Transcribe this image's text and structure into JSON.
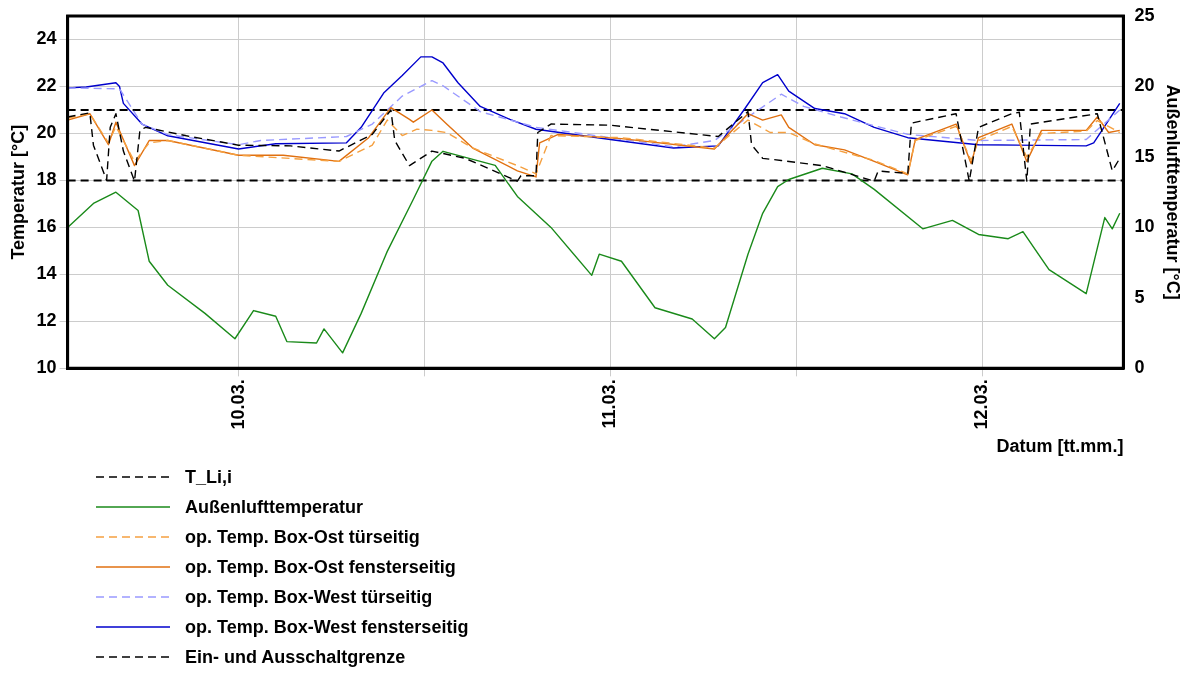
{
  "chart_data": {
    "type": "line",
    "xlabel": "Datum [tt.mm.]",
    "ylabel": "Temperatur [°C]",
    "y2label": "Außenlufttemperatur [°C]",
    "xlim": [
      "--03-09T12:58",
      "--03-12T09:07"
    ],
    "xticks": [
      {
        "value": "--03-10",
        "label": "10.03."
      },
      {
        "value": "--03-10T12:00",
        "label": null
      },
      {
        "value": "--03-11",
        "label": "11.03."
      },
      {
        "value": "--03-11T12:00",
        "label": null
      },
      {
        "value": "--03-12",
        "label": "12.03."
      }
    ],
    "ylim": [
      10,
      25
    ],
    "yticks": [
      10,
      12,
      14,
      16,
      18,
      20,
      22,
      24
    ],
    "y2lim": [
      0,
      25
    ],
    "y2ticks": [
      0,
      5,
      10,
      15,
      20,
      25
    ],
    "grid": true,
    "legend": "bottom",
    "marker": "none",
    "series": [
      {
        "name": "T_Li,i",
        "color": "#000000",
        "line_style": "dashed",
        "x": [
          "--03-09T12:58",
          "--03-09T14:24",
          "--03-09T14:38",
          "--03-09T15:29",
          "--03-09T15:43",
          "--03-09T16:05",
          "--03-09T16:34",
          "--03-09T17:17",
          "--03-09T17:38",
          "--03-09T18:00",
          "--03-09T20:38",
          "--03-10T00:00",
          "--03-10T03:22",
          "--03-10T06:29",
          "--03-10T08:38",
          "--03-10T09:50",
          "--03-10T10:05",
          "--03-10T11:02",
          "--03-10T12:29",
          "--03-10T14:38",
          "--03-10T18:00",
          "--03-10T18:14",
          "--03-10T19:12",
          "--03-10T19:19",
          "--03-10T20:10",
          "--03-11T00:00",
          "--03-11T06:58",
          "--03-11T08:53",
          "--03-11T09:07",
          "--03-11T09:50",
          "--03-11T11:02",
          "--03-11T13:41",
          "--03-11T17:02",
          "--03-11T17:17",
          "--03-11T19:12",
          "--03-11T19:26",
          "--03-11T22:19",
          "--03-11T23:10",
          "--03-11T23:46",
          "--03-12T01:55",
          "--03-12T02:24",
          "--03-12T02:53",
          "--03-12T03:07",
          "--03-12T07:26",
          "--03-12T08:24",
          "--03-12T08:53"
        ],
        "values": [
          20.7,
          20.88,
          19.5,
          18.0,
          20.26,
          20.84,
          19.25,
          17.97,
          20.13,
          20.26,
          19.9,
          19.5,
          19.47,
          19.25,
          19.96,
          21.0,
          19.7,
          18.63,
          19.25,
          18.94,
          17.97,
          18.2,
          18.2,
          20.04,
          20.4,
          20.35,
          19.87,
          20.93,
          19.52,
          18.94,
          18.85,
          18.63,
          17.97,
          18.4,
          18.3,
          20.44,
          20.84,
          17.97,
          20.26,
          20.84,
          20.9,
          17.97,
          20.4,
          20.84,
          18.41,
          18.94
        ]
      },
      {
        "name": "Außenlufttemperatur",
        "color": "#1a8a1a",
        "line_style": "solid",
        "axis": "y2",
        "x": [
          "--03-09T12:58",
          "--03-09T14:38",
          "--03-09T16:05",
          "--03-09T17:31",
          "--03-09T18:14",
          "--03-09T19:26",
          "--03-09T21:50",
          "--03-09T23:46",
          "--03-10T00:58",
          "--03-10T02:24",
          "--03-10T03:07",
          "--03-10T05:02",
          "--03-10T05:31",
          "--03-10T06:43",
          "--03-10T07:55",
          "--03-10T09:36",
          "--03-10T11:17",
          "--03-10T12:29",
          "--03-10T13:12",
          "--03-10T16:34",
          "--03-10T18:00",
          "--03-10T20:10",
          "--03-10T22:48",
          "--03-10T23:17",
          "--03-11T00:43",
          "--03-11T02:53",
          "--03-11T05:17",
          "--03-11T06:43",
          "--03-11T07:26",
          "--03-11T08:53",
          "--03-11T09:50",
          "--03-11T10:48",
          "--03-11T11:31",
          "--03-11T13:41",
          "--03-11T15:36",
          "--03-11T17:02",
          "--03-11T20:10",
          "--03-11T22:05",
          "--03-11T23:46",
          "--03-12T01:41",
          "--03-12T02:38",
          "--03-12T04:19",
          "--03-12T06:43",
          "--03-12T07:55",
          "--03-12T08:24",
          "--03-12T08:53"
        ],
        "values": [
          10.0,
          11.7,
          12.5,
          11.2,
          7.6,
          5.9,
          3.9,
          2.1,
          4.1,
          3.7,
          1.9,
          1.8,
          2.8,
          1.1,
          3.9,
          8.3,
          12.0,
          14.7,
          15.4,
          14.4,
          12.2,
          10.0,
          6.6,
          8.1,
          7.6,
          4.3,
          3.5,
          2.1,
          2.9,
          8.1,
          11.0,
          12.9,
          13.4,
          14.2,
          13.8,
          12.7,
          9.9,
          10.5,
          9.5,
          9.2,
          9.7,
          7.0,
          5.3,
          10.7,
          9.9,
          11.0
        ]
      },
      {
        "name": "op. Temp. Box-Ost türseitig",
        "color": "#f5a040",
        "line_style": "dashed",
        "x": [
          "--03-09T12:58",
          "--03-09T14:24",
          "--03-09T15:36",
          "--03-09T16:05",
          "--03-09T17:17",
          "--03-09T18:14",
          "--03-09T19:26",
          "--03-10T00:00",
          "--03-10T06:29",
          "--03-10T08:38",
          "--03-10T09:36",
          "--03-10T10:34",
          "--03-10T11:31",
          "--03-10T12:29",
          "--03-10T13:26",
          "--03-10T15:07",
          "--03-10T18:00",
          "--03-10T19:12",
          "--03-10T20:10",
          "--03-11T00:43",
          "--03-11T06:43",
          "--03-11T08:53",
          "--03-11T10:19",
          "--03-11T11:31",
          "--03-11T13:12",
          "--03-11T17:02",
          "--03-11T19:12",
          "--03-11T19:41",
          "--03-11T22:19",
          "--03-11T23:17",
          "--03-11T23:46",
          "--03-12T01:55",
          "--03-12T02:53",
          "--03-12T03:50",
          "--03-12T06:43",
          "--03-12T07:26",
          "--03-12T08:53"
        ],
        "values": [
          20.66,
          20.84,
          19.6,
          20.3,
          18.8,
          19.6,
          19.7,
          19.07,
          18.81,
          19.5,
          20.57,
          19.91,
          20.18,
          20.13,
          20.04,
          19.38,
          18.63,
          18.28,
          19.91,
          19.82,
          19.38,
          20.57,
          20.04,
          20.04,
          19.55,
          18.85,
          18.28,
          19.7,
          20.3,
          18.85,
          19.7,
          20.3,
          19.0,
          20.0,
          20.1,
          20.55,
          20.04
        ]
      },
      {
        "name": "op. Temp. Box-Ost fensterseitig",
        "color": "#e07010",
        "line_style": "solid",
        "x": [
          "--03-09T12:58",
          "--03-09T14:24",
          "--03-09T15:36",
          "--03-09T16:05",
          "--03-09T17:17",
          "--03-09T18:14",
          "--03-09T19:26",
          "--03-10T00:00",
          "--03-10T02:53",
          "--03-10T06:29",
          "--03-10T08:24",
          "--03-10T09:50",
          "--03-10T11:02",
          "--03-10T11:17",
          "--03-10T12:29",
          "--03-10T13:26",
          "--03-10T15:07",
          "--03-10T18:00",
          "--03-10T19:12",
          "--03-10T19:26",
          "--03-10T20:38",
          "--03-11T00:43",
          "--03-11T06:43",
          "--03-11T08:53",
          "--03-11T09:50",
          "--03-11T11:02",
          "--03-11T11:31",
          "--03-11T13:12",
          "--03-11T15:07",
          "--03-11T17:02",
          "--03-11T19:12",
          "--03-11T19:41",
          "--03-11T22:19",
          "--03-11T23:17",
          "--03-11T23:46",
          "--03-12T01:55",
          "--03-12T02:53",
          "--03-12T03:50",
          "--03-12T06:43",
          "--03-12T07:26",
          "--03-12T08:10",
          "--03-12T08:53"
        ],
        "values": [
          20.57,
          20.84,
          19.52,
          20.48,
          18.63,
          19.7,
          19.7,
          19.07,
          19.07,
          18.81,
          19.82,
          21.1,
          20.6,
          20.48,
          21.0,
          20.4,
          19.38,
          18.41,
          18.15,
          19.6,
          19.96,
          19.78,
          19.34,
          20.84,
          20.57,
          20.79,
          20.26,
          19.52,
          19.3,
          18.81,
          18.24,
          19.74,
          20.4,
          18.72,
          19.82,
          20.4,
          18.81,
          20.13,
          20.13,
          20.7,
          20.04,
          20.13
        ]
      },
      {
        "name": "op. Temp. Box-West türseitig",
        "color": "#9999ff",
        "line_style": "dashed",
        "x": [
          "--03-09T12:58",
          "--03-09T16:19",
          "--03-09T17:46",
          "--03-09T19:26",
          "--03-10T00:00",
          "--03-10T01:26",
          "--03-10T06:58",
          "--03-10T08:38",
          "--03-10T10:34",
          "--03-10T12:29",
          "--03-10T13:12",
          "--03-10T15:36",
          "--03-10T19:12",
          "--03-11T00:00",
          "--03-11T04:05",
          "--03-11T06:43",
          "--03-11T08:53",
          "--03-11T11:02",
          "--03-11T12:29",
          "--03-11T14:53",
          "--03-11T19:12",
          "--03-11T23:46",
          "--03-12T06:43",
          "--03-12T08:53"
        ],
        "values": [
          21.94,
          21.9,
          20.4,
          19.95,
          19.52,
          19.7,
          19.87,
          20.4,
          21.59,
          22.25,
          22.03,
          20.93,
          20.26,
          19.82,
          19.43,
          19.7,
          20.7,
          21.67,
          21.15,
          20.7,
          19.96,
          19.7,
          19.74,
          21.0
        ]
      },
      {
        "name": "op. Temp. Box-West fensterseitig",
        "color": "#0000cc",
        "line_style": "solid",
        "x": [
          "--03-09T12:58",
          "--03-09T14:10",
          "--03-09T16:05",
          "--03-09T16:19",
          "--03-09T16:34",
          "--03-09T17:46",
          "--03-09T19:26",
          "--03-10T00:00",
          "--03-10T02:24",
          "--03-10T06:58",
          "--03-10T07:55",
          "--03-10T09:22",
          "--03-10T10:34",
          "--03-10T11:46",
          "--03-10T12:29",
          "--03-10T13:12",
          "--03-10T14:10",
          "--03-10T15:36",
          "--03-10T17:31",
          "--03-10T19:12",
          "--03-11T00:00",
          "--03-11T04:05",
          "--03-11T06:58",
          "--03-11T08:38",
          "--03-11T09:50",
          "--03-11T10:48",
          "--03-11T11:31",
          "--03-11T13:12",
          "--03-11T15:07",
          "--03-11T17:02",
          "--03-11T19:12",
          "--03-11T23:46",
          "--03-12T06:43",
          "--03-12T07:12",
          "--03-12T08:53"
        ],
        "values": [
          21.94,
          21.98,
          22.16,
          22.0,
          21.28,
          20.4,
          19.9,
          19.34,
          19.56,
          19.6,
          20.26,
          21.72,
          22.47,
          23.26,
          23.26,
          23.0,
          22.16,
          21.15,
          20.6,
          20.18,
          19.74,
          19.38,
          19.47,
          21.01,
          22.16,
          22.5,
          21.8,
          21.06,
          20.84,
          20.26,
          19.82,
          19.52,
          19.47,
          19.6,
          21.28
        ]
      }
    ],
    "ref_lines": [
      {
        "axis": "y",
        "value": 21,
        "label": "Ein- und Ausschaltgrenze",
        "color": "#000000",
        "line_style": "dashed"
      },
      {
        "axis": "y",
        "value": 18,
        "color": "#000000",
        "line_style": "dashed"
      }
    ]
  }
}
